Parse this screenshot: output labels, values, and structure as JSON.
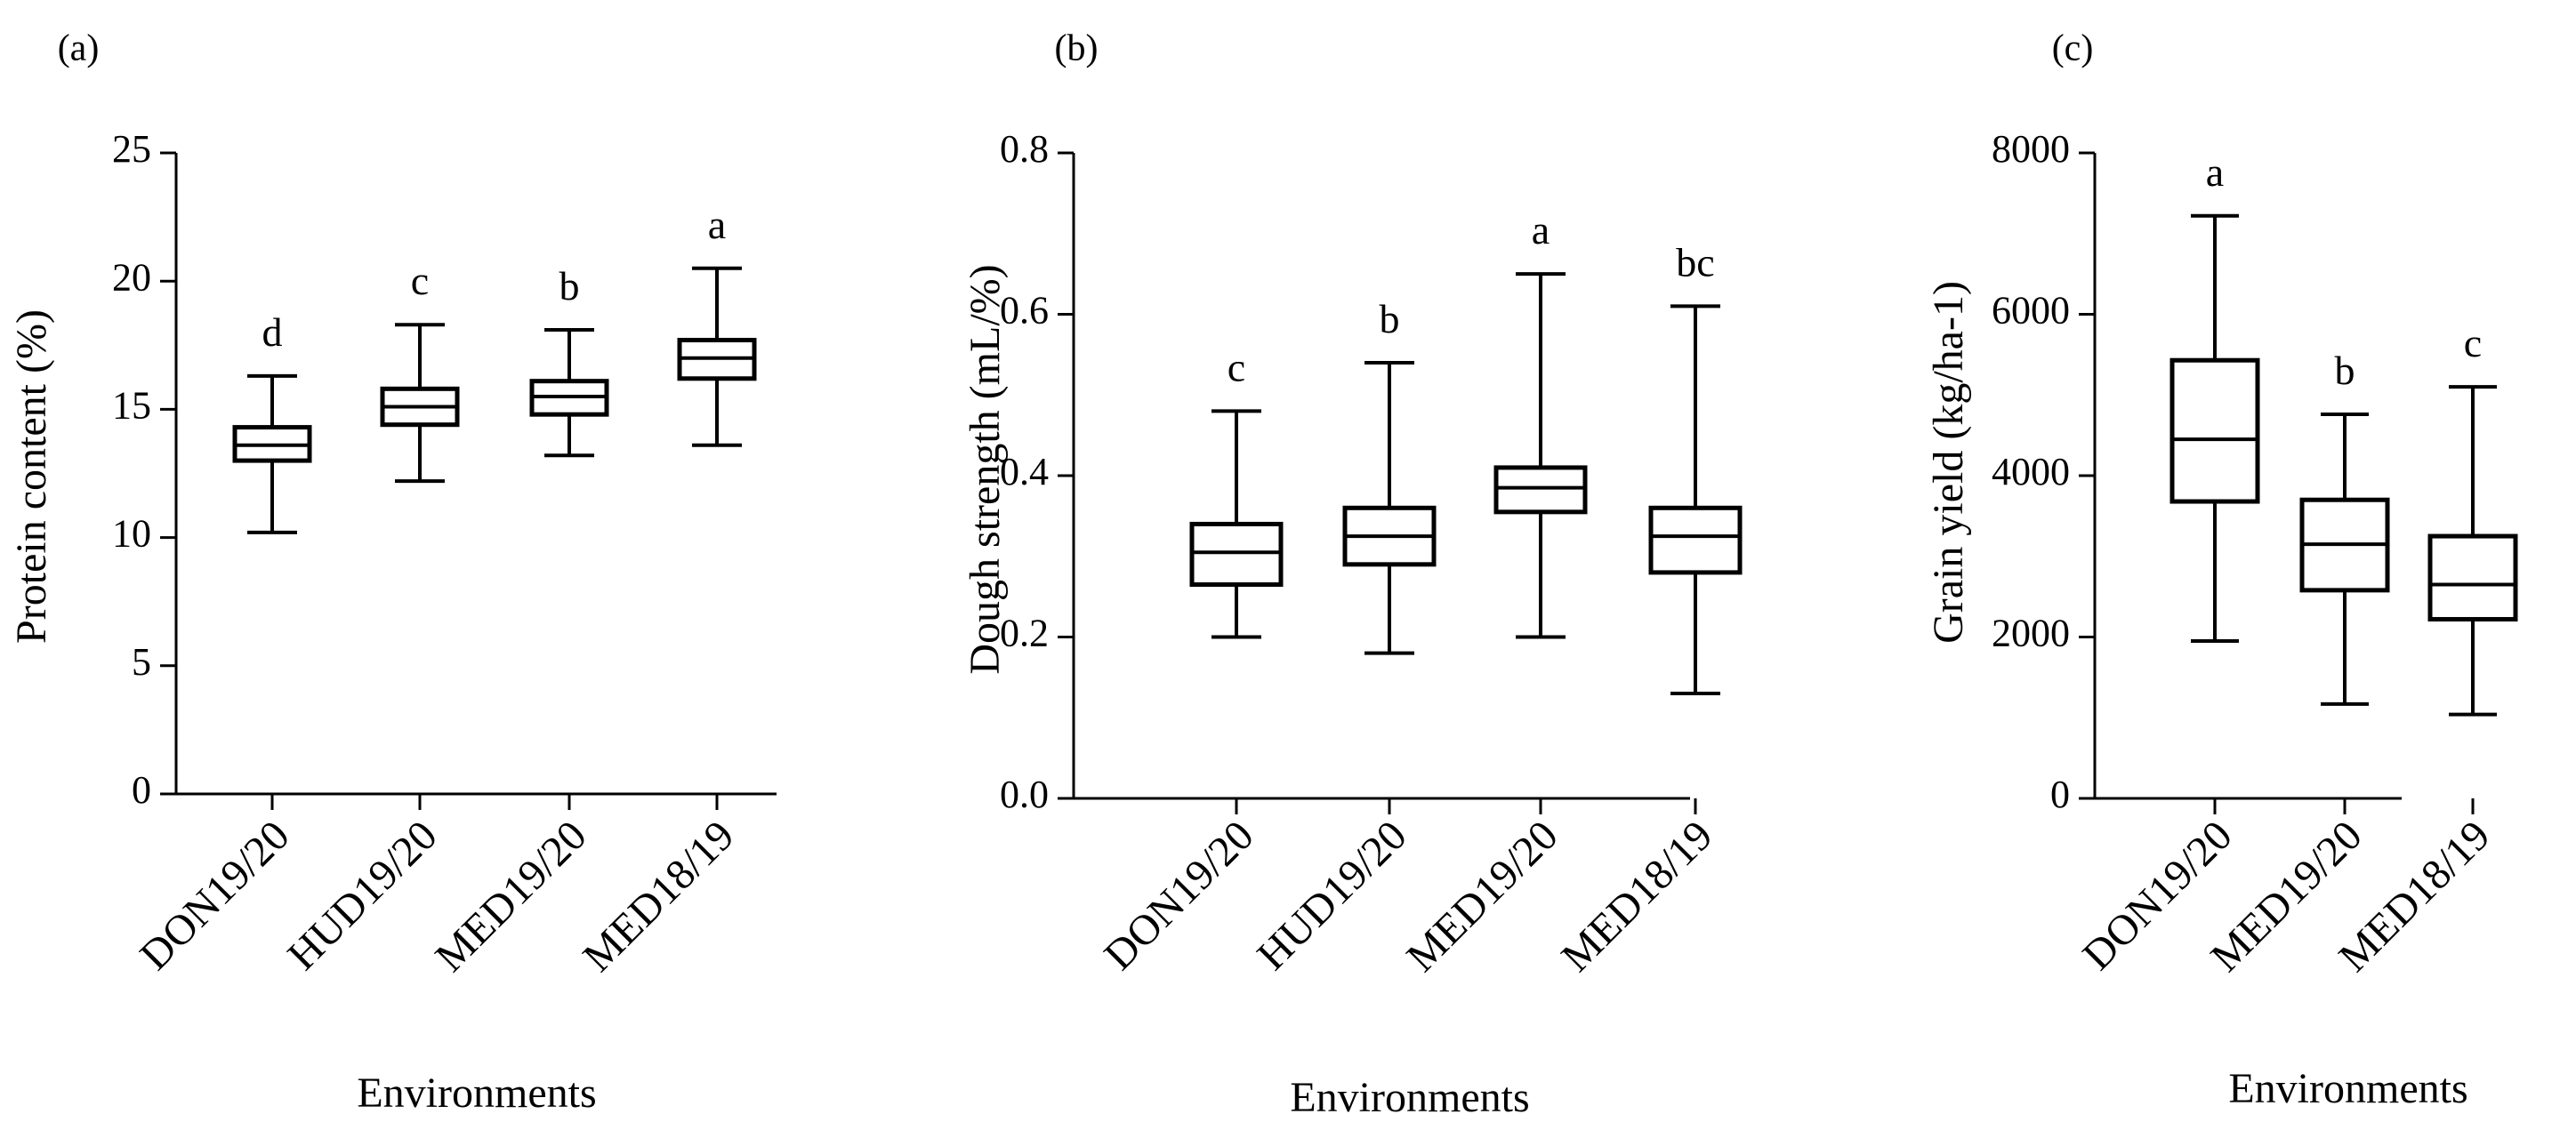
{
  "chart_data": [
    {
      "type": "box",
      "panel_label": "(a)",
      "title": "",
      "xlabel": "Environments",
      "ylabel": "Protein content (%)",
      "ylim": [
        0,
        25
      ],
      "yticks": [
        0,
        5,
        10,
        15,
        20,
        25
      ],
      "ytick_labels": [
        "0",
        "5",
        "10",
        "15",
        "20",
        "25"
      ],
      "categories": [
        "DON19/20",
        "HUD19/20",
        "MED19/20",
        "MED18/19"
      ],
      "boxes": [
        {
          "min": 10.2,
          "q1": 13.0,
          "median": 13.6,
          "q3": 14.3,
          "max": 16.3,
          "letter": "d"
        },
        {
          "min": 12.2,
          "q1": 14.4,
          "median": 15.1,
          "q3": 15.8,
          "max": 18.3,
          "letter": "c"
        },
        {
          "min": 13.2,
          "q1": 14.8,
          "median": 15.5,
          "q3": 16.1,
          "max": 18.1,
          "letter": "b"
        },
        {
          "min": 13.6,
          "q1": 16.2,
          "median": 17.0,
          "q3": 17.7,
          "max": 20.5,
          "letter": "a"
        }
      ]
    },
    {
      "type": "box",
      "panel_label": "(b)",
      "title": "",
      "xlabel": "Environments",
      "ylabel": "Dough strength (mL/%)",
      "ylim": [
        0,
        0.8
      ],
      "yticks": [
        0,
        0.2,
        0.4,
        0.6,
        0.8
      ],
      "ytick_labels": [
        "0.0",
        "0.2",
        "0.4",
        "0.6",
        "0.8"
      ],
      "categories": [
        "DON19/20",
        "HUD19/20",
        "MED19/20",
        "MED18/19"
      ],
      "boxes": [
        {
          "min": 0.2,
          "q1": 0.265,
          "median": 0.305,
          "q3": 0.34,
          "max": 0.48,
          "letter": "c"
        },
        {
          "min": 0.18,
          "q1": 0.29,
          "median": 0.325,
          "q3": 0.36,
          "max": 0.54,
          "letter": "b"
        },
        {
          "min": 0.2,
          "q1": 0.355,
          "median": 0.385,
          "q3": 0.41,
          "max": 0.65,
          "letter": "a"
        },
        {
          "min": 0.13,
          "q1": 0.28,
          "median": 0.325,
          "q3": 0.36,
          "max": 0.61,
          "letter": "bc"
        }
      ]
    },
    {
      "type": "box",
      "panel_label": "(c)",
      "title": "",
      "xlabel": "Environments",
      "ylabel": "Grain yield (kg/ha-1)",
      "ylim": [
        0,
        8000
      ],
      "yticks": [
        0,
        2000,
        4000,
        6000,
        8000
      ],
      "ytick_labels": [
        "0",
        "2000",
        "4000",
        "6000",
        "8000"
      ],
      "categories": [
        "DON19/20",
        "MED19/20",
        "MED18/19"
      ],
      "boxes": [
        {
          "min": 1950,
          "q1": 3680,
          "median": 4450,
          "q3": 5430,
          "max": 7220,
          "letter": "a"
        },
        {
          "min": 1170,
          "q1": 2580,
          "median": 3150,
          "q3": 3700,
          "max": 4760,
          "letter": "b"
        },
        {
          "min": 1040,
          "q1": 2220,
          "median": 2650,
          "q3": 3250,
          "max": 5100,
          "letter": "c"
        }
      ]
    }
  ]
}
